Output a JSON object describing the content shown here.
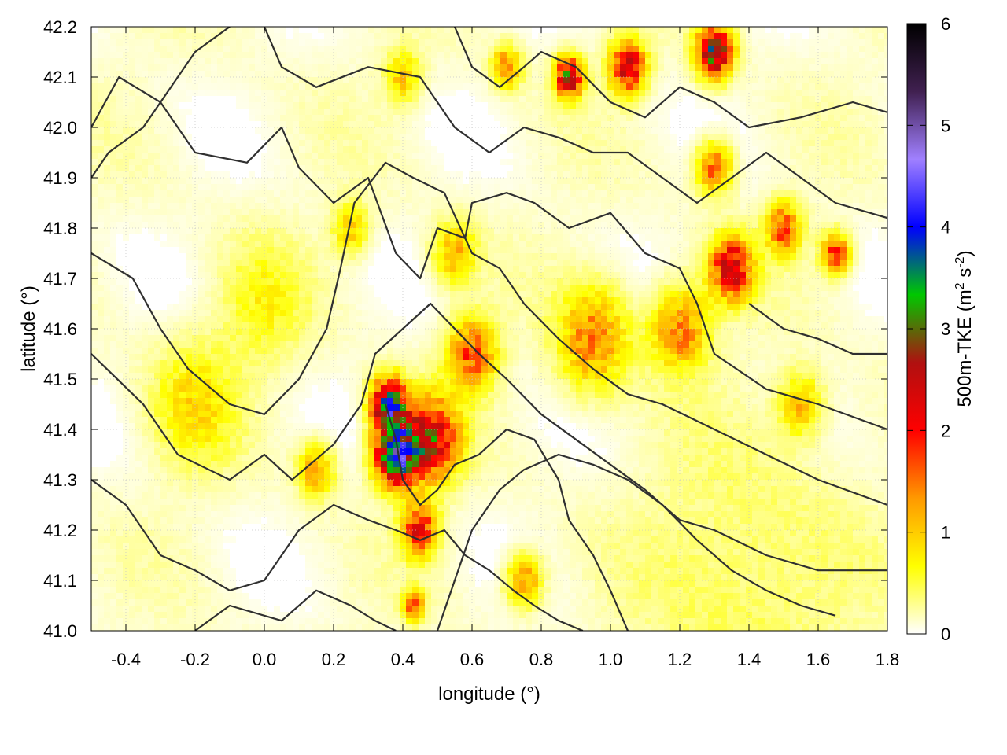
{
  "chart_data": {
    "type": "heatmap",
    "title": "",
    "xlabel": "longitude (°)",
    "ylabel": "latitude (°)",
    "colorbar_label": "500m-TKE (m² s⁻²)",
    "colorbar_label_parts": {
      "prefix": "500m-TKE (m",
      "sup1": "2",
      "mid": " s",
      "sup2": "-2",
      "suffix": ")"
    },
    "xlim": [
      -0.5,
      1.8
    ],
    "ylim": [
      41.0,
      42.2
    ],
    "clim": [
      0,
      6
    ],
    "x_ticks": [
      "-0.4",
      "-0.2",
      "0.0",
      "0.2",
      "0.4",
      "0.6",
      "0.8",
      "1.0",
      "1.2",
      "1.4",
      "1.6",
      "1.8"
    ],
    "x_tick_values": [
      -0.4,
      -0.2,
      0.0,
      0.2,
      0.4,
      0.6,
      0.8,
      1.0,
      1.2,
      1.4,
      1.6,
      1.8
    ],
    "y_ticks": [
      "41.0",
      "41.1",
      "41.2",
      "41.3",
      "41.4",
      "41.5",
      "41.6",
      "41.7",
      "41.8",
      "41.9",
      "42.0",
      "42.1",
      "42.2"
    ],
    "y_tick_values": [
      41.0,
      41.1,
      41.2,
      41.3,
      41.4,
      41.5,
      41.6,
      41.7,
      41.8,
      41.9,
      42.0,
      42.1,
      42.2
    ],
    "colorbar_ticks": [
      "0",
      "1",
      "2",
      "3",
      "4",
      "5",
      "6"
    ],
    "colorbar_tick_values": [
      0,
      1,
      2,
      3,
      4,
      5,
      6
    ],
    "colormap": [
      "#ffffff",
      "#ffff00",
      "#ff9900",
      "#ff0000",
      "#b01010",
      "#00c800",
      "#0000ff",
      "#a080ff",
      "#402050",
      "#000000"
    ],
    "grid": true,
    "tke_hotspots": [
      {
        "lon": 0.38,
        "lat": 41.35,
        "value": 3.5,
        "spread": 0.06
      },
      {
        "lon": 0.36,
        "lat": 41.45,
        "value": 3.2,
        "spread": 0.05
      },
      {
        "lon": 0.48,
        "lat": 41.38,
        "value": 2.4,
        "spread": 0.08
      },
      {
        "lon": 0.45,
        "lat": 41.2,
        "value": 2.0,
        "spread": 0.05
      },
      {
        "lon": 0.6,
        "lat": 41.55,
        "value": 1.6,
        "spread": 0.07
      },
      {
        "lon": 0.95,
        "lat": 41.58,
        "value": 1.3,
        "spread": 0.1
      },
      {
        "lon": 1.2,
        "lat": 41.6,
        "value": 1.4,
        "spread": 0.08
      },
      {
        "lon": 1.35,
        "lat": 41.72,
        "value": 2.3,
        "spread": 0.06
      },
      {
        "lon": 1.5,
        "lat": 41.8,
        "value": 1.6,
        "spread": 0.05
      },
      {
        "lon": 1.65,
        "lat": 41.75,
        "value": 1.8,
        "spread": 0.04
      },
      {
        "lon": 1.3,
        "lat": 41.92,
        "value": 1.5,
        "spread": 0.05
      },
      {
        "lon": 0.88,
        "lat": 42.1,
        "value": 2.6,
        "spread": 0.04
      },
      {
        "lon": 1.05,
        "lat": 42.12,
        "value": 2.4,
        "spread": 0.05
      },
      {
        "lon": 1.3,
        "lat": 42.15,
        "value": 3.0,
        "spread": 0.05
      },
      {
        "lon": 0.7,
        "lat": 42.12,
        "value": 1.4,
        "spread": 0.04
      },
      {
        "lon": 0.4,
        "lat": 42.1,
        "value": 0.9,
        "spread": 0.05
      },
      {
        "lon": -0.2,
        "lat": 41.45,
        "value": 0.7,
        "spread": 0.12
      },
      {
        "lon": 0.0,
        "lat": 41.65,
        "value": 0.5,
        "spread": 0.12
      },
      {
        "lon": 0.15,
        "lat": 41.32,
        "value": 1.2,
        "spread": 0.05
      },
      {
        "lon": 0.43,
        "lat": 41.05,
        "value": 1.5,
        "spread": 0.03
      },
      {
        "lon": 0.75,
        "lat": 41.1,
        "value": 1.3,
        "spread": 0.05
      },
      {
        "lon": 1.55,
        "lat": 41.45,
        "value": 1.0,
        "spread": 0.06
      },
      {
        "lon": 1.4,
        "lat": 41.1,
        "value": 0.35,
        "spread": 0.3
      },
      {
        "lon": 0.55,
        "lat": 41.75,
        "value": 1.0,
        "spread": 0.06
      },
      {
        "lon": 0.25,
        "lat": 41.8,
        "value": 0.9,
        "spread": 0.05
      }
    ],
    "contours": [
      [
        [
          -0.5,
          42.0
        ],
        [
          -0.42,
          42.1
        ],
        [
          -0.3,
          42.05
        ],
        [
          -0.2,
          41.95
        ],
        [
          -0.05,
          41.93
        ],
        [
          0.05,
          42.0
        ],
        [
          0.1,
          41.92
        ],
        [
          0.2,
          41.85
        ],
        [
          0.3,
          41.9
        ],
        [
          0.38,
          41.75
        ],
        [
          0.45,
          41.7
        ],
        [
          0.5,
          41.8
        ],
        [
          0.58,
          41.78
        ],
        [
          0.6,
          41.85
        ],
        [
          0.7,
          41.87
        ],
        [
          0.78,
          41.85
        ],
        [
          0.88,
          41.8
        ],
        [
          1.0,
          41.83
        ],
        [
          1.1,
          41.75
        ],
        [
          1.2,
          41.72
        ],
        [
          1.25,
          41.65
        ],
        [
          1.3,
          41.55
        ],
        [
          1.45,
          41.48
        ],
        [
          1.6,
          41.45
        ],
        [
          1.8,
          41.4
        ]
      ],
      [
        [
          -0.5,
          41.75
        ],
        [
          -0.38,
          41.7
        ],
        [
          -0.3,
          41.6
        ],
        [
          -0.22,
          41.52
        ],
        [
          -0.1,
          41.45
        ],
        [
          0.0,
          41.43
        ],
        [
          0.1,
          41.5
        ],
        [
          0.18,
          41.6
        ],
        [
          0.22,
          41.72
        ],
        [
          0.26,
          41.85
        ],
        [
          0.35,
          41.93
        ],
        [
          0.43,
          41.9
        ],
        [
          0.52,
          41.87
        ],
        [
          0.6,
          41.75
        ],
        [
          0.68,
          41.72
        ],
        [
          0.75,
          41.65
        ],
        [
          0.85,
          41.58
        ],
        [
          0.95,
          41.52
        ],
        [
          1.05,
          41.47
        ],
        [
          1.15,
          41.45
        ],
        [
          1.3,
          41.4
        ],
        [
          1.45,
          41.35
        ],
        [
          1.6,
          41.3
        ],
        [
          1.8,
          41.25
        ]
      ],
      [
        [
          -0.5,
          41.55
        ],
        [
          -0.35,
          41.45
        ],
        [
          -0.25,
          41.35
        ],
        [
          -0.1,
          41.3
        ],
        [
          0.0,
          41.35
        ],
        [
          0.08,
          41.3
        ],
        [
          0.2,
          41.37
        ],
        [
          0.28,
          41.45
        ],
        [
          0.32,
          41.55
        ],
        [
          0.4,
          41.6
        ],
        [
          0.48,
          41.65
        ],
        [
          0.55,
          41.6
        ],
        [
          0.62,
          41.55
        ],
        [
          0.7,
          41.5
        ],
        [
          0.8,
          41.43
        ],
        [
          0.9,
          41.38
        ],
        [
          1.0,
          41.33
        ],
        [
          1.1,
          41.28
        ],
        [
          1.2,
          41.22
        ],
        [
          1.3,
          41.2
        ],
        [
          1.45,
          41.15
        ],
        [
          1.6,
          41.12
        ],
        [
          1.8,
          41.12
        ]
      ],
      [
        [
          -0.5,
          41.3
        ],
        [
          -0.4,
          41.25
        ],
        [
          -0.3,
          41.15
        ],
        [
          -0.2,
          41.12
        ],
        [
          -0.1,
          41.08
        ],
        [
          0.0,
          41.1
        ],
        [
          0.1,
          41.2
        ],
        [
          0.2,
          41.25
        ],
        [
          0.3,
          41.22
        ],
        [
          0.38,
          41.2
        ],
        [
          0.45,
          41.18
        ],
        [
          0.52,
          41.2
        ],
        [
          0.58,
          41.15
        ],
        [
          0.65,
          41.12
        ],
        [
          0.72,
          41.08
        ],
        [
          0.78,
          41.05
        ],
        [
          0.85,
          41.02
        ],
        [
          0.92,
          41.0
        ]
      ],
      [
        [
          -0.2,
          41.0
        ],
        [
          -0.1,
          41.05
        ],
        [
          0.05,
          41.02
        ],
        [
          0.15,
          41.08
        ],
        [
          0.25,
          41.05
        ],
        [
          0.32,
          41.02
        ],
        [
          0.38,
          41.0
        ]
      ],
      [
        [
          0.5,
          41.0
        ],
        [
          0.55,
          41.1
        ],
        [
          0.6,
          41.2
        ],
        [
          0.68,
          41.28
        ],
        [
          0.75,
          41.32
        ],
        [
          0.85,
          41.35
        ],
        [
          0.95,
          41.33
        ],
        [
          1.05,
          41.3
        ],
        [
          1.15,
          41.25
        ],
        [
          1.25,
          41.18
        ],
        [
          1.35,
          41.12
        ],
        [
          1.45,
          41.08
        ],
        [
          1.55,
          41.05
        ],
        [
          1.65,
          41.03
        ]
      ],
      [
        [
          0.0,
          42.2
        ],
        [
          0.05,
          42.12
        ],
        [
          0.15,
          42.08
        ],
        [
          0.3,
          42.12
        ],
        [
          0.45,
          42.1
        ],
        [
          0.55,
          42.0
        ],
        [
          0.65,
          41.95
        ],
        [
          0.75,
          42.0
        ],
        [
          0.85,
          41.98
        ],
        [
          0.95,
          41.95
        ],
        [
          1.05,
          41.95
        ],
        [
          1.15,
          41.9
        ],
        [
          1.25,
          41.85
        ],
        [
          1.35,
          41.9
        ],
        [
          1.45,
          41.95
        ],
        [
          1.55,
          41.9
        ],
        [
          1.65,
          41.85
        ],
        [
          1.8,
          41.82
        ]
      ],
      [
        [
          0.55,
          42.2
        ],
        [
          0.6,
          42.12
        ],
        [
          0.68,
          42.08
        ],
        [
          0.75,
          42.12
        ],
        [
          0.8,
          42.15
        ],
        [
          0.9,
          42.12
        ],
        [
          1.0,
          42.05
        ],
        [
          1.1,
          42.02
        ],
        [
          1.2,
          42.08
        ],
        [
          1.3,
          42.05
        ],
        [
          1.4,
          42.0
        ],
        [
          1.55,
          42.02
        ],
        [
          1.7,
          42.05
        ],
        [
          1.8,
          42.03
        ]
      ],
      [
        [
          0.35,
          41.45
        ],
        [
          0.38,
          41.38
        ],
        [
          0.4,
          41.3
        ],
        [
          0.45,
          41.25
        ],
        [
          0.5,
          41.28
        ],
        [
          0.55,
          41.33
        ],
        [
          0.62,
          41.35
        ],
        [
          0.7,
          41.4
        ],
        [
          0.78,
          41.38
        ],
        [
          0.85,
          41.3
        ],
        [
          0.88,
          41.22
        ],
        [
          0.95,
          41.15
        ],
        [
          1.0,
          41.08
        ],
        [
          1.05,
          41.0
        ]
      ],
      [
        [
          1.4,
          41.65
        ],
        [
          1.5,
          41.6
        ],
        [
          1.6,
          41.58
        ],
        [
          1.7,
          41.55
        ],
        [
          1.8,
          41.55
        ]
      ],
      [
        [
          -0.5,
          41.9
        ],
        [
          -0.45,
          41.95
        ],
        [
          -0.35,
          42.0
        ],
        [
          -0.2,
          42.15
        ],
        [
          -0.1,
          42.2
        ]
      ]
    ]
  }
}
